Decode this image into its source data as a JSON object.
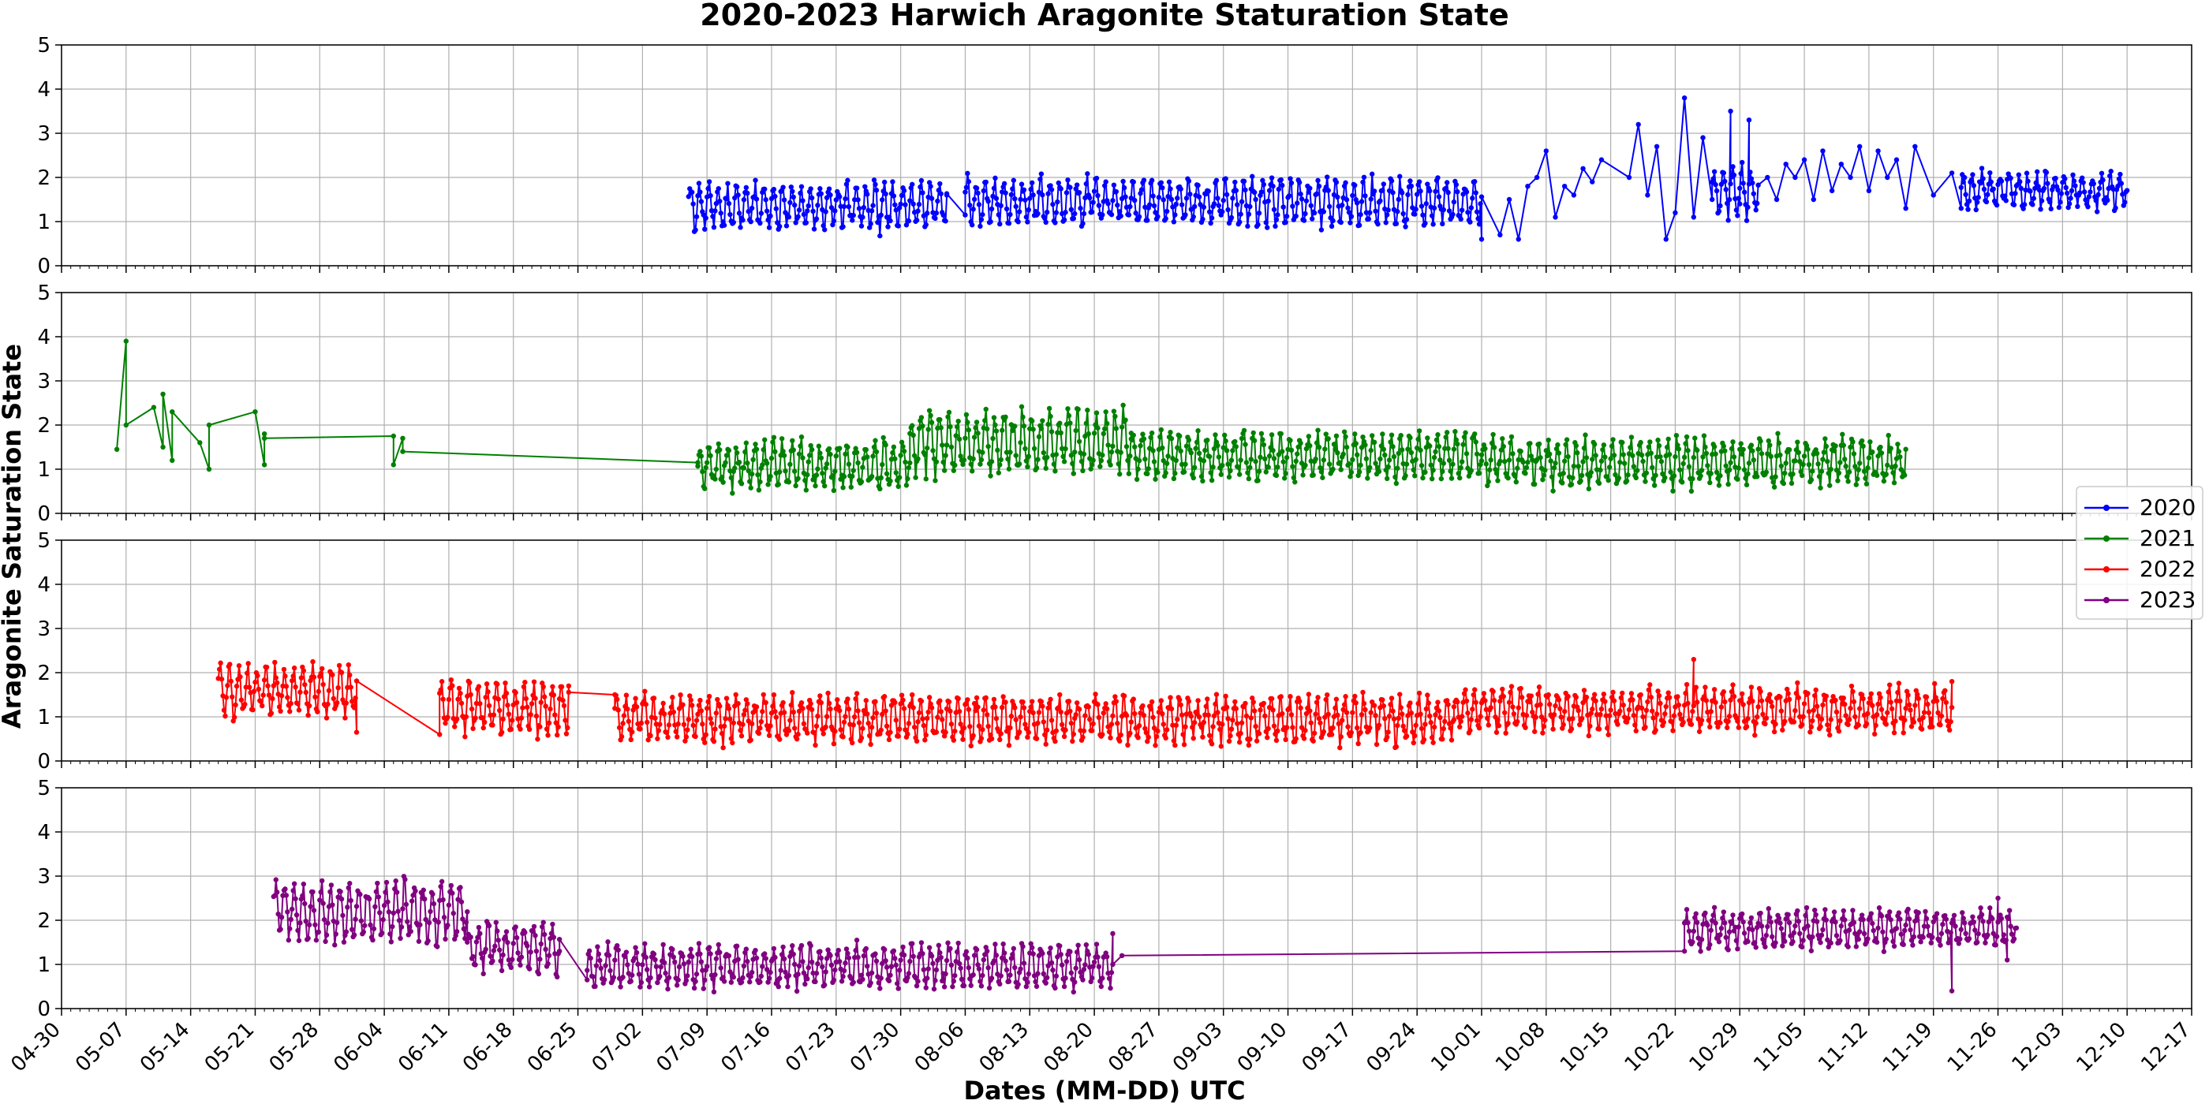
{
  "chart_data": {
    "type": "line",
    "title": "2020-2023 Harwich Aragonite Staturation State",
    "xlabel": "Dates (MM-DD) UTC",
    "ylabel": "Aragonite Saturation State",
    "x_axis": {
      "type": "date",
      "range": [
        "04-30",
        "12-17"
      ],
      "tick_labels": [
        "04-30",
        "05-07",
        "05-14",
        "05-21",
        "05-28",
        "06-04",
        "06-11",
        "06-18",
        "06-25",
        "07-02",
        "07-09",
        "07-16",
        "07-23",
        "07-30",
        "08-06",
        "08-13",
        "08-20",
        "08-27",
        "09-03",
        "09-10",
        "09-17",
        "09-24",
        "10-01",
        "10-08",
        "10-15",
        "10-22",
        "10-29",
        "11-05",
        "11-12",
        "11-19",
        "11-26",
        "12-03",
        "12-10",
        "12-17"
      ]
    },
    "y_axis": {
      "range": [
        0,
        5
      ],
      "ticks": [
        0,
        1,
        2,
        3,
        4,
        5
      ]
    },
    "grid": true,
    "legend": {
      "placement": "right",
      "entries": [
        "2020",
        "2021",
        "2022",
        "2023"
      ]
    },
    "series": [
      {
        "name": "2020",
        "color": "#0000ff",
        "marker": "diamond",
        "segments": [
          {
            "start": "07-07",
            "end": "08-04",
            "base": 1.35,
            "amp": 0.45
          },
          {
            "start": "08-06",
            "end": "10-01",
            "base": 1.45,
            "amp": 0.45
          },
          {
            "start": "10-26",
            "end": "10-31",
            "base": 1.7,
            "amp": 0.5
          },
          {
            "start": "11-22",
            "end": "12-10",
            "base": 1.7,
            "amp": 0.35
          }
        ],
        "points": [
          [
            "08-04",
            1.6
          ],
          [
            "08-06",
            1.15
          ],
          [
            "10-01",
            0.6
          ],
          [
            "10-03",
            0.7
          ],
          [
            "10-04",
            1.5
          ],
          [
            "10-05",
            0.6
          ],
          [
            "10-06",
            1.8
          ],
          [
            "10-07",
            2.0
          ],
          [
            "10-08",
            2.6
          ],
          [
            "10-09",
            1.1
          ],
          [
            "10-10",
            1.8
          ],
          [
            "10-11",
            1.6
          ],
          [
            "10-12",
            2.2
          ],
          [
            "10-13",
            1.9
          ],
          [
            "10-14",
            2.4
          ],
          [
            "10-17",
            2.0
          ],
          [
            "10-18",
            3.2
          ],
          [
            "10-19",
            1.6
          ],
          [
            "10-20",
            2.7
          ],
          [
            "10-21",
            0.6
          ],
          [
            "10-22",
            1.2
          ],
          [
            "10-23",
            3.8
          ],
          [
            "10-24",
            1.1
          ],
          [
            "10-25",
            2.9
          ],
          [
            "10-26",
            1.5
          ],
          [
            "10-28",
            3.5
          ],
          [
            "10-29",
            1.4
          ],
          [
            "10-30",
            3.3
          ],
          [
            "11-01",
            2.0
          ],
          [
            "11-02",
            1.5
          ],
          [
            "11-03",
            2.3
          ],
          [
            "11-04",
            2.0
          ],
          [
            "11-05",
            2.4
          ],
          [
            "11-06",
            1.5
          ],
          [
            "11-07",
            2.6
          ],
          [
            "11-08",
            1.7
          ],
          [
            "11-09",
            2.3
          ],
          [
            "11-10",
            2.0
          ],
          [
            "11-11",
            2.7
          ],
          [
            "11-12",
            1.7
          ],
          [
            "11-13",
            2.6
          ],
          [
            "11-14",
            2.0
          ],
          [
            "11-15",
            2.4
          ],
          [
            "11-16",
            1.3
          ],
          [
            "11-17",
            2.7
          ],
          [
            "11-19",
            1.6
          ],
          [
            "11-21",
            2.1
          ],
          [
            "11-22",
            1.3
          ]
        ]
      },
      {
        "name": "2021",
        "color": "#008000",
        "marker": "triangle",
        "segments": [
          {
            "start": "07-08",
            "end": "07-31",
            "base": 1.1,
            "amp": 0.45
          },
          {
            "start": "07-31",
            "end": "08-24",
            "base": 1.6,
            "amp": 0.6
          },
          {
            "start": "08-24",
            "end": "10-01",
            "base": 1.3,
            "amp": 0.45
          },
          {
            "start": "10-01",
            "end": "11-16",
            "base": 1.15,
            "amp": 0.45
          }
        ],
        "points": [
          [
            "05-06",
            1.45
          ],
          [
            "05-07",
            3.9
          ],
          [
            "05-07",
            2.0
          ],
          [
            "05-10",
            2.4
          ],
          [
            "05-11",
            1.5
          ],
          [
            "05-11",
            2.7
          ],
          [
            "05-12",
            1.2
          ],
          [
            "05-12",
            2.3
          ],
          [
            "05-15",
            1.6
          ],
          [
            "05-16",
            1.0
          ],
          [
            "05-16",
            2.0
          ],
          [
            "05-21",
            2.3
          ],
          [
            "05-22",
            1.1
          ],
          [
            "05-22",
            1.8
          ],
          [
            "05-22",
            1.7
          ],
          [
            "06-05",
            1.75
          ],
          [
            "06-05",
            1.1
          ],
          [
            "06-06",
            1.7
          ],
          [
            "06-06",
            1.4
          ],
          [
            "07-08",
            1.15
          ]
        ]
      },
      {
        "name": "2022",
        "color": "#ff0000",
        "marker": "star",
        "segments": [
          {
            "start": "05-17",
            "end": "06-01",
            "base": 1.6,
            "amp": 0.5
          },
          {
            "start": "06-10",
            "end": "06-24",
            "base": 1.2,
            "amp": 0.5
          },
          {
            "start": "06-29",
            "end": "09-28",
            "base": 0.95,
            "amp": 0.45
          },
          {
            "start": "09-28",
            "end": "11-21",
            "base": 1.15,
            "amp": 0.4
          }
        ],
        "points": [
          [
            "06-01",
            0.65
          ],
          [
            "06-10",
            0.6
          ],
          [
            "06-24",
            1.7
          ],
          [
            "06-29",
            1.5
          ],
          [
            "10-24",
            2.3
          ],
          [
            "11-21",
            1.8
          ]
        ]
      },
      {
        "name": "2023",
        "color": "#800080",
        "marker": "diamond",
        "segments": [
          {
            "start": "05-23",
            "end": "06-13",
            "base": 2.2,
            "amp": 0.6
          },
          {
            "start": "06-13",
            "end": "06-23",
            "base": 1.4,
            "amp": 0.45
          },
          {
            "start": "06-26",
            "end": "08-22",
            "base": 0.95,
            "amp": 0.4
          },
          {
            "start": "10-23",
            "end": "11-28",
            "base": 1.8,
            "amp": 0.35
          }
        ],
        "points": [
          [
            "06-23",
            1.3
          ],
          [
            "06-26",
            0.65
          ],
          [
            "08-22",
            1.7
          ],
          [
            "08-23",
            1.2
          ],
          [
            "10-23",
            1.3
          ],
          [
            "11-21",
            0.4
          ],
          [
            "11-26",
            2.5
          ],
          [
            "11-27",
            1.1
          ]
        ]
      }
    ]
  }
}
